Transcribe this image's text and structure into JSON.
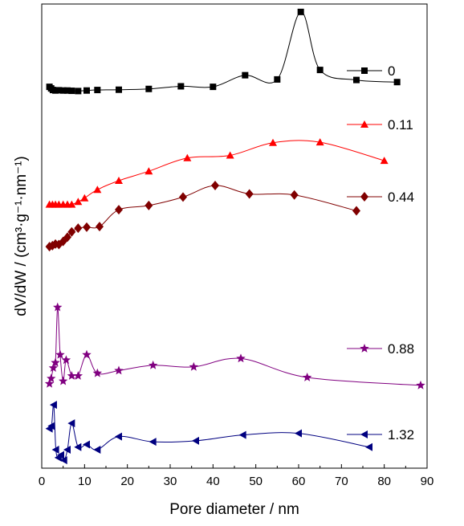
{
  "chart_data": {
    "type": "line",
    "xlabel": "Pore diameter / nm",
    "ylabel": "dV/dW / (cm³·g⁻¹·nm⁻¹)",
    "xlim": [
      0,
      90
    ],
    "xticks": [
      "0",
      "10",
      "20",
      "30",
      "40",
      "50",
      "60",
      "70",
      "80",
      "90"
    ],
    "y_ticks_shown": false,
    "legend_placement": "right, next to each curve",
    "series": [
      {
        "name": "0",
        "color": "#000000",
        "marker": "square",
        "x": [
          1.8,
          2.2,
          2.6,
          3.2,
          4,
          5,
          6,
          7,
          8.5,
          10.5,
          13,
          18,
          25,
          32.5,
          40,
          47.5,
          55,
          60.5,
          65,
          73.5,
          83
        ],
        "y": [
          0.93,
          0.9,
          0.87,
          0.86,
          0.865,
          0.86,
          0.86,
          0.855,
          0.85,
          0.86,
          0.87,
          0.875,
          0.89,
          0.94,
          0.93,
          1.15,
          1.07,
          2.35,
          1.25,
          1.06,
          1.02
        ]
      },
      {
        "name": "0.11",
        "color": "#ff0000",
        "marker": "triangle-up",
        "x": [
          1.8,
          2.5,
          3.2,
          4,
          5,
          6,
          7,
          8.5,
          10,
          13,
          18,
          25,
          34,
          44,
          54,
          65,
          80
        ],
        "y": [
          -1.3,
          -1.3,
          -1.3,
          -1.3,
          -1.3,
          -1.3,
          -1.3,
          -1.25,
          -1.18,
          -1.02,
          -0.85,
          -0.67,
          -0.42,
          -0.37,
          -0.13,
          -0.12,
          -0.47
        ]
      },
      {
        "name": "0.44",
        "color": "#800000",
        "marker": "diamond",
        "x": [
          1.8,
          2.5,
          3.2,
          4,
          5,
          6,
          7,
          8.5,
          10.5,
          13.5,
          18,
          25,
          33,
          40.5,
          48.5,
          59,
          73.5
        ],
        "y": [
          -2.1,
          -2.08,
          -2.05,
          -2.06,
          -2.0,
          -1.92,
          -1.82,
          -1.75,
          -1.73,
          -1.72,
          -1.4,
          -1.32,
          -1.16,
          -0.94,
          -1.1,
          -1.12,
          -1.42
        ]
      },
      {
        "name": "0.88",
        "color": "#800080",
        "marker": "star",
        "x": [
          1.8,
          2.2,
          2.7,
          3.2,
          3.7,
          4.3,
          5,
          5.7,
          7,
          8.5,
          10.5,
          13,
          18,
          26,
          35.5,
          46.5,
          62,
          88.5
        ],
        "y": [
          -4.7,
          -4.6,
          -4.4,
          -4.3,
          -3.25,
          -4.15,
          -4.65,
          -4.25,
          -4.55,
          -4.55,
          -4.15,
          -4.5,
          -4.45,
          -4.35,
          -4.38,
          -4.22,
          -4.58,
          -4.73
        ]
      },
      {
        "name": "1.32",
        "color": "#000080",
        "marker": "triangle-left",
        "x": [
          1.8,
          2.3,
          2.8,
          3.3,
          3.9,
          4.5,
          5.2,
          6,
          7,
          8.5,
          10.5,
          13,
          18,
          26,
          36,
          47,
          60,
          76.5
        ],
        "y": [
          -5.55,
          -5.5,
          -5.1,
          -5.95,
          -6.1,
          -6.05,
          -6.15,
          -5.95,
          -5.45,
          -5.9,
          -5.85,
          -5.95,
          -5.7,
          -5.8,
          -5.78,
          -5.67,
          -5.64,
          -5.9
        ]
      }
    ]
  }
}
